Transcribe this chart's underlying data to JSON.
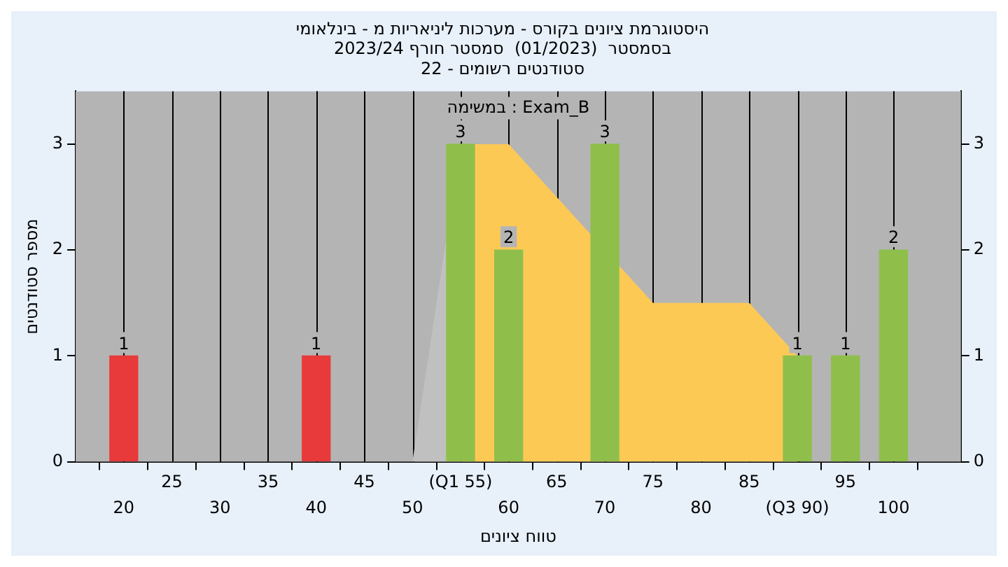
{
  "chart_data": {
    "type": "bar",
    "title": "היסטוגרמת ציונים בקורס - מערכות ליניאריות מ - בינלאומי",
    "subtitle": "בסמסטר  (01/2023)  סמסטר חורף 2023/24\nסטודנטים רשומים - 22",
    "xlabel": "טווח ציונים",
    "ylabel": "מספר סטודנטים",
    "annotations": [
      "במשימה : Exam_B"
    ],
    "series": [
      {
        "type": "area",
        "color": "#c0c0c0",
        "x": [
          50,
          55
        ],
        "values": [
          0,
          3
        ]
      },
      {
        "type": "area",
        "color": "#fdc955",
        "x": [
          55,
          60,
          75,
          85,
          90
        ],
        "values": [
          3,
          3,
          1.5,
          1.5,
          1
        ]
      },
      {
        "type": "bar",
        "x": [
          20,
          40,
          55,
          60,
          70,
          90,
          95,
          100
        ],
        "values": [
          1,
          1,
          3,
          2,
          3,
          1,
          1,
          2
        ],
        "value_labels": [
          "1",
          "1",
          "3",
          "2",
          "3",
          "1",
          "1",
          "2"
        ],
        "colors": [
          "#e83a3a",
          "#e83a3a",
          "#8fbf4a",
          "#8fbf4a",
          "#8fbf4a",
          "#8fbf4a",
          "#8fbf4a",
          "#8fbf4a"
        ]
      }
    ],
    "xlim": [
      15,
      107
    ],
    "xticks": [
      20,
      30,
      40,
      50,
      60,
      70,
      80,
      {
        "value": 90,
        "label": "(Q3 90)"
      },
      100
    ],
    "x2lim": [
      15,
      107
    ],
    "x2ticks": [
      {
        "value": 20,
        "label": null
      },
      25,
      {
        "value": 30,
        "label": null
      },
      35,
      {
        "value": 40,
        "label": null
      },
      45,
      {
        "value": 50,
        "label": null
      },
      {
        "value": 55,
        "label": "(Q1 55)"
      },
      {
        "value": 60,
        "label": null
      },
      65,
      {
        "value": 70,
        "label": null
      },
      75,
      {
        "value": 80,
        "label": null
      },
      85,
      {
        "value": 90,
        "label": null
      },
      95,
      {
        "value": 100,
        "label": null
      }
    ],
    "ylim": [
      0,
      3.5
    ],
    "yticks": [
      0,
      1,
      2,
      3
    ],
    "y2lim": [
      0,
      3.5
    ],
    "y2ticks": [
      0,
      1,
      2,
      3
    ],
    "grid": true,
    "legend": false
  }
}
